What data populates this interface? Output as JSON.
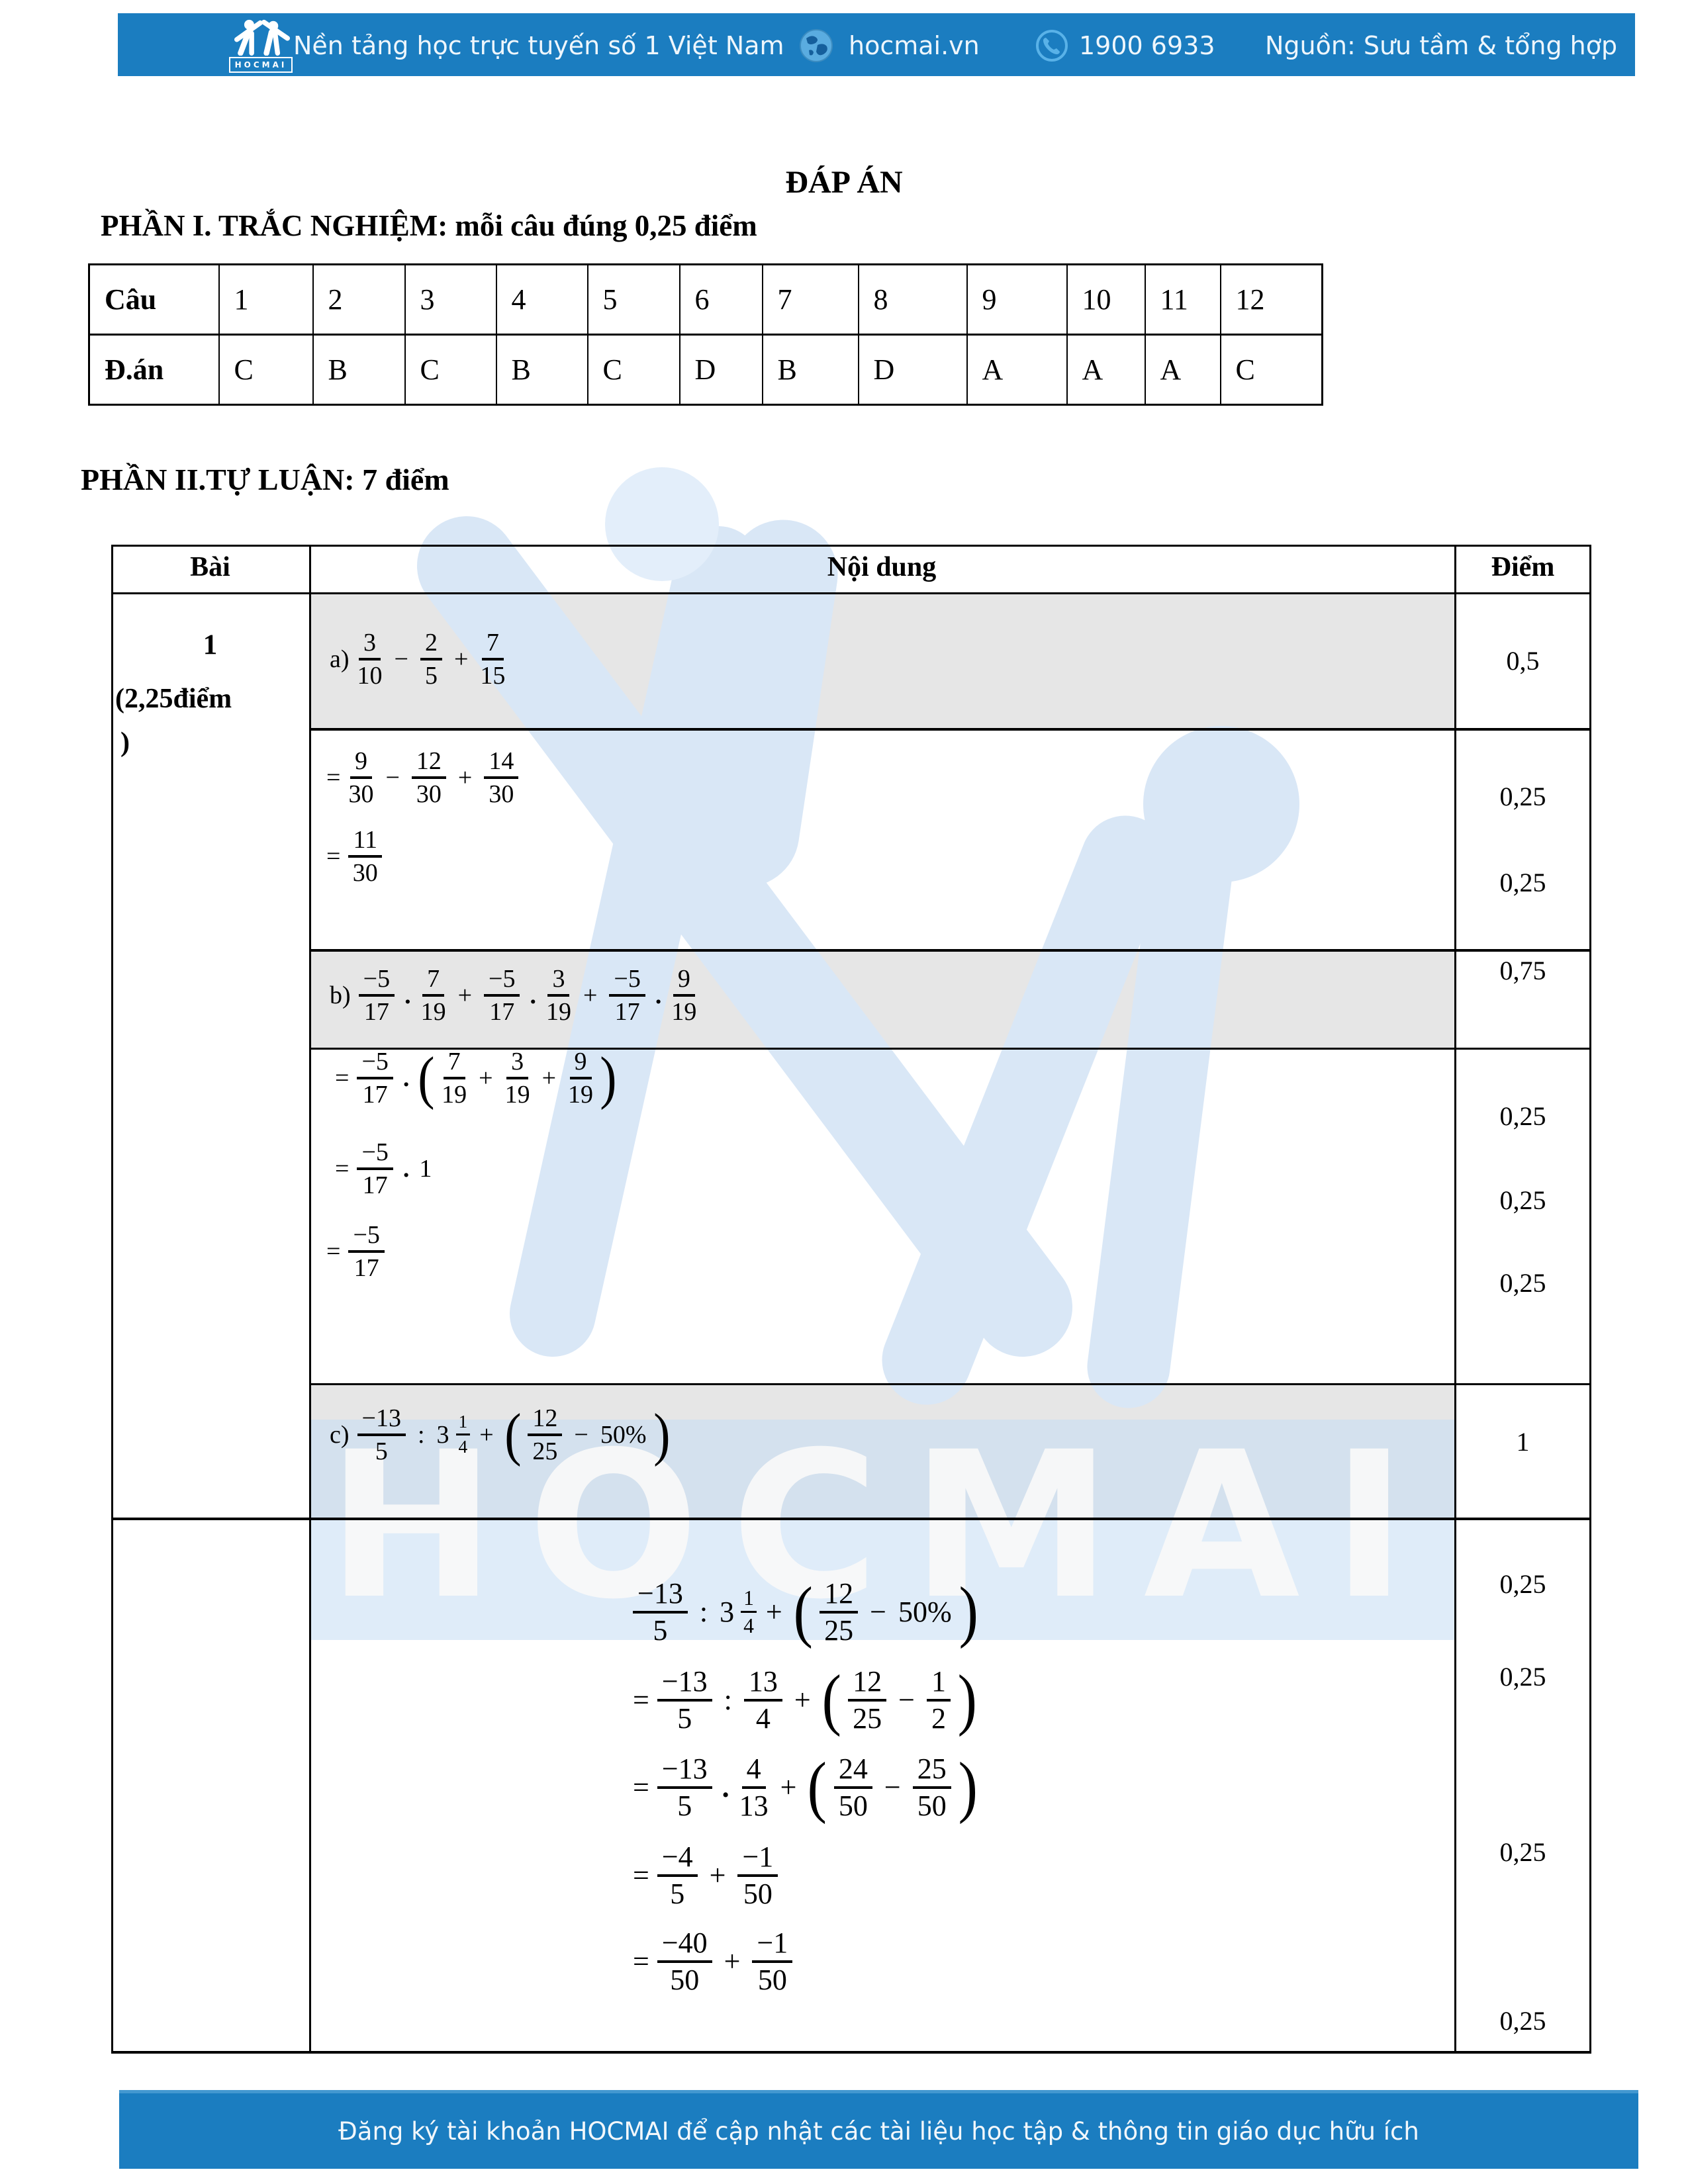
{
  "colors": {
    "brand_blue": "#1b7dc0",
    "row_shade": "#e6e6e6",
    "watermark_blue": "#d9e7f6"
  },
  "header": {
    "logo_label": "HOCMAI",
    "tagline": "Nền tảng học trực tuyến số 1 Việt Nam",
    "site": "hocmai.vn",
    "phone": "1900 6933",
    "source": "Nguồn: Sưu tầm & tổng hợp"
  },
  "title": "ĐÁP ÁN",
  "part1_heading": "PHẦN I. TRẮC NGHIỆM: mỗi câu đúng 0,25 điểm",
  "part2_heading": "PHẦN II.TỰ LUẬN: 7 điểm",
  "answers_table": {
    "row1_label": "Câu",
    "row2_label": "Đ.án",
    "questions": [
      "1",
      "2",
      "3",
      "4",
      "5",
      "6",
      "7",
      "8",
      "9",
      "10",
      "11",
      "12"
    ],
    "answers": [
      "C",
      "B",
      "C",
      "B",
      "C",
      "D",
      "B",
      "D",
      "A",
      "A",
      "A",
      "C"
    ]
  },
  "main_table": {
    "headers": {
      "bai": "Bài",
      "noi_dung": "Nội dung",
      "diem": "Điểm"
    },
    "bai1_lines": [
      "1",
      "(2,25điểm",
      ")"
    ]
  },
  "math": {
    "a": [
      {
        "k": "t",
        "v": "a)"
      },
      {
        "k": "f",
        "n": "3",
        "d": "10"
      },
      {
        "k": "o",
        "v": "−"
      },
      {
        "k": "f",
        "n": "2",
        "d": "5"
      },
      {
        "k": "o",
        "v": "+"
      },
      {
        "k": "f",
        "n": "7",
        "d": "15"
      }
    ],
    "a1": [
      {
        "k": "t",
        "v": "="
      },
      {
        "k": "f",
        "n": "9",
        "d": "30"
      },
      {
        "k": "o",
        "v": "−"
      },
      {
        "k": "f",
        "n": "12",
        "d": "30"
      },
      {
        "k": "o",
        "v": "+"
      },
      {
        "k": "f",
        "n": "14",
        "d": "30"
      }
    ],
    "a2": [
      {
        "k": "t",
        "v": "="
      },
      {
        "k": "f",
        "n": "11",
        "d": "30"
      }
    ],
    "b": [
      {
        "k": "t",
        "v": "b)"
      },
      {
        "k": "f",
        "n": "−5",
        "d": "17"
      },
      {
        "k": "d",
        "v": "."
      },
      {
        "k": "f",
        "n": "7",
        "d": "19"
      },
      {
        "k": "o",
        "v": "+"
      },
      {
        "k": "f",
        "n": "−5",
        "d": "17"
      },
      {
        "k": "d",
        "v": "."
      },
      {
        "k": "f",
        "n": "3",
        "d": "19"
      },
      {
        "k": "o",
        "v": "+"
      },
      {
        "k": "f",
        "n": "−5",
        "d": "17"
      },
      {
        "k": "d",
        "v": "."
      },
      {
        "k": "f",
        "n": "9",
        "d": "19"
      }
    ],
    "b1": [
      {
        "k": "t",
        "v": "="
      },
      {
        "k": "f",
        "n": "−5",
        "d": "17"
      },
      {
        "k": "d",
        "v": "."
      },
      {
        "k": "p",
        "v": "("
      },
      {
        "k": "f",
        "n": "7",
        "d": "19"
      },
      {
        "k": "o",
        "v": "+"
      },
      {
        "k": "f",
        "n": "3",
        "d": "19"
      },
      {
        "k": "o",
        "v": "+"
      },
      {
        "k": "f",
        "n": "9",
        "d": "19"
      },
      {
        "k": "p",
        "v": ")"
      }
    ],
    "b2": [
      {
        "k": "t",
        "v": "="
      },
      {
        "k": "f",
        "n": "−5",
        "d": "17"
      },
      {
        "k": "d",
        "v": "."
      },
      {
        "k": "t",
        "v": "1"
      }
    ],
    "b3": [
      {
        "k": "t",
        "v": "="
      },
      {
        "k": "f",
        "n": "−5",
        "d": "17"
      }
    ],
    "c": [
      {
        "k": "t",
        "v": "c)"
      },
      {
        "k": "f",
        "n": "−13",
        "d": "5"
      },
      {
        "k": "o",
        "v": ":"
      },
      {
        "k": "t",
        "v": "3"
      },
      {
        "k": "mf",
        "n": "1",
        "d": "4"
      },
      {
        "k": "o",
        "v": "+"
      },
      {
        "k": "p",
        "v": "("
      },
      {
        "k": "f",
        "n": "12",
        "d": "25"
      },
      {
        "k": "o",
        "v": "−"
      },
      {
        "k": "t",
        "v": "50%"
      },
      {
        "k": "p",
        "v": ")"
      }
    ],
    "c0": [
      {
        "k": "f",
        "n": "−13",
        "d": "5"
      },
      {
        "k": "o",
        "v": ":"
      },
      {
        "k": "t",
        "v": "3"
      },
      {
        "k": "mf",
        "n": "1",
        "d": "4"
      },
      {
        "k": "o",
        "v": "+"
      },
      {
        "k": "p",
        "v": "("
      },
      {
        "k": "f",
        "n": "12",
        "d": "25"
      },
      {
        "k": "o",
        "v": "−"
      },
      {
        "k": "t",
        "v": "50%"
      },
      {
        "k": "p",
        "v": ")"
      }
    ],
    "c1": [
      {
        "k": "t",
        "v": "="
      },
      {
        "k": "f",
        "n": "−13",
        "d": "5"
      },
      {
        "k": "o",
        "v": ":"
      },
      {
        "k": "f",
        "n": "13",
        "d": "4"
      },
      {
        "k": "o",
        "v": "+"
      },
      {
        "k": "p",
        "v": "("
      },
      {
        "k": "f",
        "n": "12",
        "d": "25"
      },
      {
        "k": "o",
        "v": "−"
      },
      {
        "k": "f",
        "n": "1",
        "d": "2"
      },
      {
        "k": "p",
        "v": ")"
      }
    ],
    "c2": [
      {
        "k": "t",
        "v": "="
      },
      {
        "k": "f",
        "n": "−13",
        "d": "5"
      },
      {
        "k": "d",
        "v": "."
      },
      {
        "k": "f",
        "n": "4",
        "d": "13"
      },
      {
        "k": "o",
        "v": "+"
      },
      {
        "k": "p",
        "v": "("
      },
      {
        "k": "f",
        "n": "24",
        "d": "50"
      },
      {
        "k": "o",
        "v": "−"
      },
      {
        "k": "f",
        "n": "25",
        "d": "50"
      },
      {
        "k": "p",
        "v": ")"
      }
    ],
    "c3": [
      {
        "k": "t",
        "v": "="
      },
      {
        "k": "f",
        "n": "−4",
        "d": "5"
      },
      {
        "k": "o",
        "v": "+"
      },
      {
        "k": "f",
        "n": "−1",
        "d": "50"
      }
    ],
    "c4": [
      {
        "k": "t",
        "v": "="
      },
      {
        "k": "f",
        "n": "−40",
        "d": "50"
      },
      {
        "k": "o",
        "v": "+"
      },
      {
        "k": "f",
        "n": "−1",
        "d": "50"
      }
    ]
  },
  "scores": {
    "a": "0,5",
    "a1": "0,25",
    "a2": "0,25",
    "b": "0,75",
    "b1": "0,25",
    "b2": "0,25",
    "b3": "0,25",
    "c": "1",
    "c0": "0,25",
    "c1": "0,25",
    "c3": "0,25",
    "c4": "0,25"
  },
  "watermark": {
    "word": "HOCMAI"
  },
  "footer": {
    "text": "Đăng ký tài khoản HOCMAI để cập nhật các tài liệu học tập & thông tin giáo dục hữu ích"
  }
}
